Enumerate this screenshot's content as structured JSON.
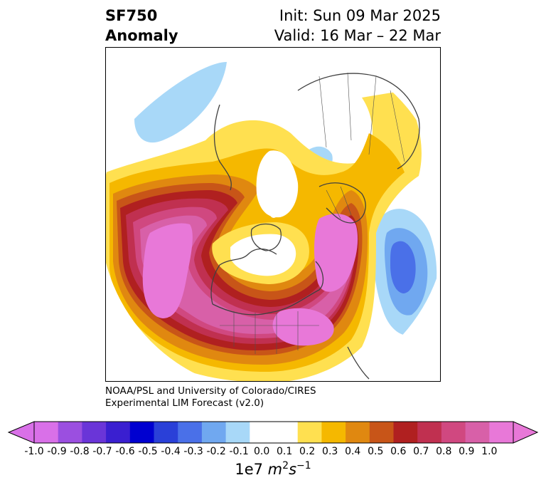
{
  "title": {
    "left_line1": "SF750",
    "left_line2": "Anomaly",
    "right_line1": "Init: Sun 09 Mar 2025",
    "right_line2": "Valid: 16 Mar – 22 Mar"
  },
  "credit": {
    "line1": "NOAA/PSL and University of Colorado/CIRES",
    "line2": "Experimental LIM Forecast (v2.0)"
  },
  "colorbar": {
    "min_color": "#d970e8",
    "max_color": "#e878d8",
    "colors": [
      "#d970e8",
      "#9b4fe0",
      "#6a35d8",
      "#3a1fd0",
      "#0000d0",
      "#2a40d8",
      "#4a70e8",
      "#70a8f0",
      "#a8d8f8",
      "#ffffff",
      "#ffffff",
      "#ffe050",
      "#f5b800",
      "#e08810",
      "#c85518",
      "#b02020",
      "#c03050",
      "#d04880",
      "#d860a8",
      "#e878d8"
    ],
    "tick_labels": [
      "-1.0",
      "-0.9",
      "-0.8",
      "-0.7",
      "-0.6",
      "-0.5",
      "-0.4",
      "-0.3",
      "-0.2",
      "-0.1",
      "0.0",
      "0.1",
      "0.2",
      "0.3",
      "0.4",
      "0.5",
      "0.6",
      "0.7",
      "0.8",
      "0.9",
      "1.0"
    ],
    "units_prefix": "1e7 ",
    "units_m": "m",
    "units_m_exp": "2",
    "units_s": "s",
    "units_s_exp": "−1"
  },
  "map_colors": {
    "yellow": "#ffe050",
    "gold": "#f5b800",
    "orange": "#e08810",
    "dark_orange": "#c85518",
    "red": "#b02020",
    "crimson": "#c03050",
    "rose": "#d04880",
    "pink": "#d860a8",
    "magenta": "#e878d8",
    "light_blue": "#a8d8f8",
    "sky_blue": "#70a8f0",
    "blue": "#4a70e8",
    "coast": "#404040"
  }
}
